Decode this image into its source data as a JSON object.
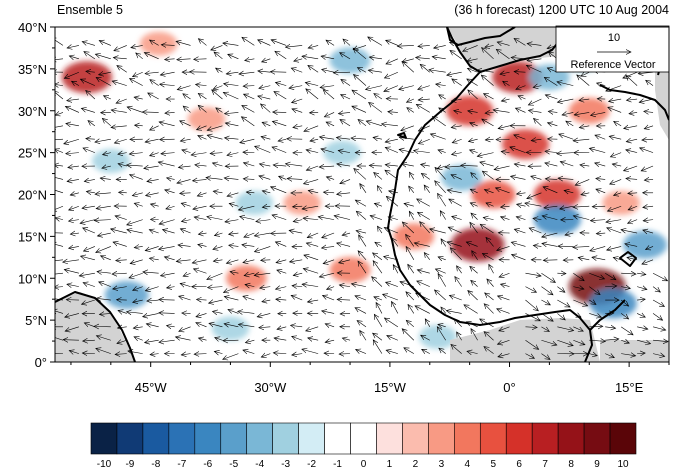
{
  "header": {
    "left_title": "Ensemble 5",
    "right_title": "(36 h forecast) 1200 UTC 10 Aug 2004"
  },
  "map": {
    "lon_range": [
      -57,
      20
    ],
    "lat_range": [
      0,
      40
    ],
    "lat_ticks": [
      {
        "value": 40,
        "label": "40°N"
      },
      {
        "value": 35,
        "label": "35°N"
      },
      {
        "value": 30,
        "label": "30°N"
      },
      {
        "value": 25,
        "label": "25°N"
      },
      {
        "value": 20,
        "label": "20°N"
      },
      {
        "value": 15,
        "label": "15°N"
      },
      {
        "value": 10,
        "label": "10°N"
      },
      {
        "value": 5,
        "label": "5°N"
      },
      {
        "value": 0,
        "label": "0°"
      }
    ],
    "lon_ticks": [
      {
        "value": -45,
        "label": "45°W"
      },
      {
        "value": -30,
        "label": "30°W"
      },
      {
        "value": -15,
        "label": "15°W"
      },
      {
        "value": 0,
        "label": "0°"
      },
      {
        "value": 15,
        "label": "15°E"
      }
    ],
    "land_color": "#d3d3d3",
    "coast_color": "#000000"
  },
  "reference_vector": {
    "magnitude_label": "10",
    "label": "Reference Vector"
  },
  "colorbar": {
    "labels": [
      "-10",
      "-9",
      "-8",
      "-7",
      "-6",
      "-5",
      "-4",
      "-3",
      "-2",
      "-1",
      "0",
      "1",
      "2",
      "3",
      "4",
      "5",
      "6",
      "7",
      "8",
      "9",
      "10"
    ],
    "colors": [
      "#0a2246",
      "#103a75",
      "#1a5aa0",
      "#2b72b5",
      "#3a86c0",
      "#5a9fcb",
      "#7ab7d6",
      "#a0d0e0",
      "#d3edf5",
      "#ffffff",
      "#ffffff",
      "#fde0dd",
      "#fbbcae",
      "#f89a84",
      "#f2775e",
      "#e8513f",
      "#d53129",
      "#b81f22",
      "#951218",
      "#760c12",
      "#5a0508"
    ]
  },
  "anomalies": [
    {
      "lon": -53,
      "lat": 34,
      "value": 7
    },
    {
      "lon": -44,
      "lat": 38,
      "value": 3
    },
    {
      "lon": -48,
      "lat": 8,
      "value": -5
    },
    {
      "lon": -38,
      "lat": 29,
      "value": 3
    },
    {
      "lon": -32,
      "lat": 19,
      "value": -3
    },
    {
      "lon": -26,
      "lat": 19,
      "value": 3
    },
    {
      "lon": -33,
      "lat": 10,
      "value": 4
    },
    {
      "lon": -20,
      "lat": 11,
      "value": 4
    },
    {
      "lon": -20,
      "lat": 36,
      "value": -4
    },
    {
      "lon": -21,
      "lat": 25,
      "value": -3
    },
    {
      "lon": -12,
      "lat": 15,
      "value": 4
    },
    {
      "lon": -6,
      "lat": 22,
      "value": -4
    },
    {
      "lon": -4,
      "lat": 14,
      "value": 8
    },
    {
      "lon": -5,
      "lat": 30,
      "value": 6
    },
    {
      "lon": 1,
      "lat": 34,
      "value": 7
    },
    {
      "lon": 2,
      "lat": 26,
      "value": 6
    },
    {
      "lon": -2,
      "lat": 20,
      "value": 5
    },
    {
      "lon": 5,
      "lat": 34,
      "value": -4
    },
    {
      "lon": 10,
      "lat": 30,
      "value": 4
    },
    {
      "lon": 6,
      "lat": 20,
      "value": 6
    },
    {
      "lon": 14,
      "lat": 19,
      "value": 3
    },
    {
      "lon": 6,
      "lat": 17,
      "value": -6
    },
    {
      "lon": 11,
      "lat": 9,
      "value": 9
    },
    {
      "lon": 13,
      "lat": 7,
      "value": -6
    },
    {
      "lon": 17,
      "lat": 14,
      "value": -5
    },
    {
      "lon": -35,
      "lat": 4,
      "value": -3
    },
    {
      "lon": -9,
      "lat": 3,
      "value": -3
    },
    {
      "lon": -50,
      "lat": 24,
      "value": -3
    },
    {
      "lon": 9,
      "lat": 36,
      "value": -3
    }
  ]
}
